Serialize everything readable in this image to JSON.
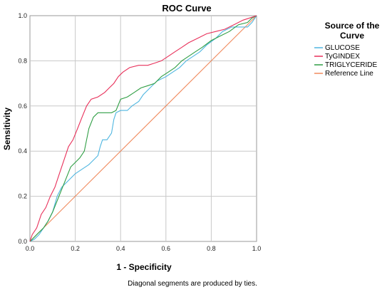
{
  "chart_data": {
    "type": "line",
    "title": "ROC Curve",
    "xlabel": "1 - Specificity",
    "ylabel": "Sensitivity",
    "xlim": [
      0,
      1
    ],
    "ylim": [
      0,
      1
    ],
    "x_ticks": [
      "0.0",
      "0.2",
      "0.4",
      "0.6",
      "0.8",
      "1.0"
    ],
    "y_ticks": [
      "0.0",
      "0.2",
      "0.4",
      "0.6",
      "0.8",
      "1.0"
    ],
    "grid": true,
    "legend": {
      "title_line1": "Source of the",
      "title_line2": "Curve",
      "position": "right"
    },
    "footnote": "Diagonal segments are produced by ties.",
    "series": [
      {
        "name": "GLUCOSE",
        "color": "#4fb6e0",
        "points": [
          [
            0,
            0
          ],
          [
            0.02,
            0.01
          ],
          [
            0.04,
            0.03
          ],
          [
            0.06,
            0.06
          ],
          [
            0.08,
            0.09
          ],
          [
            0.1,
            0.13
          ],
          [
            0.12,
            0.2
          ],
          [
            0.14,
            0.24
          ],
          [
            0.17,
            0.27
          ],
          [
            0.2,
            0.3
          ],
          [
            0.23,
            0.32
          ],
          [
            0.26,
            0.34
          ],
          [
            0.28,
            0.36
          ],
          [
            0.3,
            0.38
          ],
          [
            0.31,
            0.42
          ],
          [
            0.32,
            0.45
          ],
          [
            0.34,
            0.45
          ],
          [
            0.36,
            0.48
          ],
          [
            0.37,
            0.54
          ],
          [
            0.38,
            0.57
          ],
          [
            0.4,
            0.58
          ],
          [
            0.43,
            0.58
          ],
          [
            0.45,
            0.6
          ],
          [
            0.48,
            0.62
          ],
          [
            0.5,
            0.65
          ],
          [
            0.53,
            0.68
          ],
          [
            0.56,
            0.71
          ],
          [
            0.6,
            0.73
          ],
          [
            0.63,
            0.75
          ],
          [
            0.66,
            0.77
          ],
          [
            0.69,
            0.8
          ],
          [
            0.72,
            0.82
          ],
          [
            0.75,
            0.84
          ],
          [
            0.78,
            0.87
          ],
          [
            0.82,
            0.9
          ],
          [
            0.85,
            0.93
          ],
          [
            0.89,
            0.95
          ],
          [
            0.93,
            0.95
          ],
          [
            0.96,
            0.95
          ],
          [
            0.98,
            0.97
          ],
          [
            1,
            1
          ]
        ]
      },
      {
        "name": "TyGINDEX",
        "color": "#e8305a",
        "points": [
          [
            0,
            0
          ],
          [
            0.01,
            0.03
          ],
          [
            0.03,
            0.06
          ],
          [
            0.05,
            0.12
          ],
          [
            0.07,
            0.15
          ],
          [
            0.09,
            0.2
          ],
          [
            0.11,
            0.24
          ],
          [
            0.13,
            0.3
          ],
          [
            0.15,
            0.36
          ],
          [
            0.17,
            0.42
          ],
          [
            0.19,
            0.45
          ],
          [
            0.21,
            0.5
          ],
          [
            0.23,
            0.55
          ],
          [
            0.25,
            0.6
          ],
          [
            0.27,
            0.63
          ],
          [
            0.3,
            0.64
          ],
          [
            0.33,
            0.66
          ],
          [
            0.35,
            0.68
          ],
          [
            0.37,
            0.7
          ],
          [
            0.39,
            0.73
          ],
          [
            0.41,
            0.75
          ],
          [
            0.44,
            0.77
          ],
          [
            0.48,
            0.78
          ],
          [
            0.52,
            0.78
          ],
          [
            0.55,
            0.79
          ],
          [
            0.58,
            0.8
          ],
          [
            0.61,
            0.82
          ],
          [
            0.64,
            0.84
          ],
          [
            0.67,
            0.86
          ],
          [
            0.7,
            0.88
          ],
          [
            0.74,
            0.9
          ],
          [
            0.78,
            0.92
          ],
          [
            0.82,
            0.93
          ],
          [
            0.86,
            0.94
          ],
          [
            0.9,
            0.96
          ],
          [
            0.94,
            0.98
          ],
          [
            0.97,
            0.99
          ],
          [
            1,
            1
          ]
        ]
      },
      {
        "name": "TRIGLYCERIDE",
        "color": "#2f9e44",
        "points": [
          [
            0,
            0
          ],
          [
            0.02,
            0.02
          ],
          [
            0.04,
            0.04
          ],
          [
            0.06,
            0.06
          ],
          [
            0.08,
            0.09
          ],
          [
            0.1,
            0.13
          ],
          [
            0.12,
            0.18
          ],
          [
            0.14,
            0.23
          ],
          [
            0.16,
            0.28
          ],
          [
            0.18,
            0.33
          ],
          [
            0.2,
            0.35
          ],
          [
            0.22,
            0.37
          ],
          [
            0.24,
            0.4
          ],
          [
            0.25,
            0.45
          ],
          [
            0.26,
            0.5
          ],
          [
            0.28,
            0.55
          ],
          [
            0.3,
            0.57
          ],
          [
            0.33,
            0.57
          ],
          [
            0.36,
            0.57
          ],
          [
            0.38,
            0.58
          ],
          [
            0.4,
            0.63
          ],
          [
            0.43,
            0.64
          ],
          [
            0.46,
            0.66
          ],
          [
            0.49,
            0.68
          ],
          [
            0.52,
            0.69
          ],
          [
            0.55,
            0.7
          ],
          [
            0.58,
            0.73
          ],
          [
            0.61,
            0.75
          ],
          [
            0.64,
            0.77
          ],
          [
            0.67,
            0.8
          ],
          [
            0.7,
            0.82
          ],
          [
            0.73,
            0.84
          ],
          [
            0.76,
            0.86
          ],
          [
            0.8,
            0.89
          ],
          [
            0.84,
            0.91
          ],
          [
            0.88,
            0.93
          ],
          [
            0.92,
            0.96
          ],
          [
            0.96,
            0.97
          ],
          [
            0.98,
            0.99
          ],
          [
            1,
            1
          ]
        ]
      },
      {
        "name": "Reference Line",
        "color": "#f08a5d",
        "points": [
          [
            0,
            0
          ],
          [
            1,
            1
          ]
        ]
      }
    ]
  }
}
